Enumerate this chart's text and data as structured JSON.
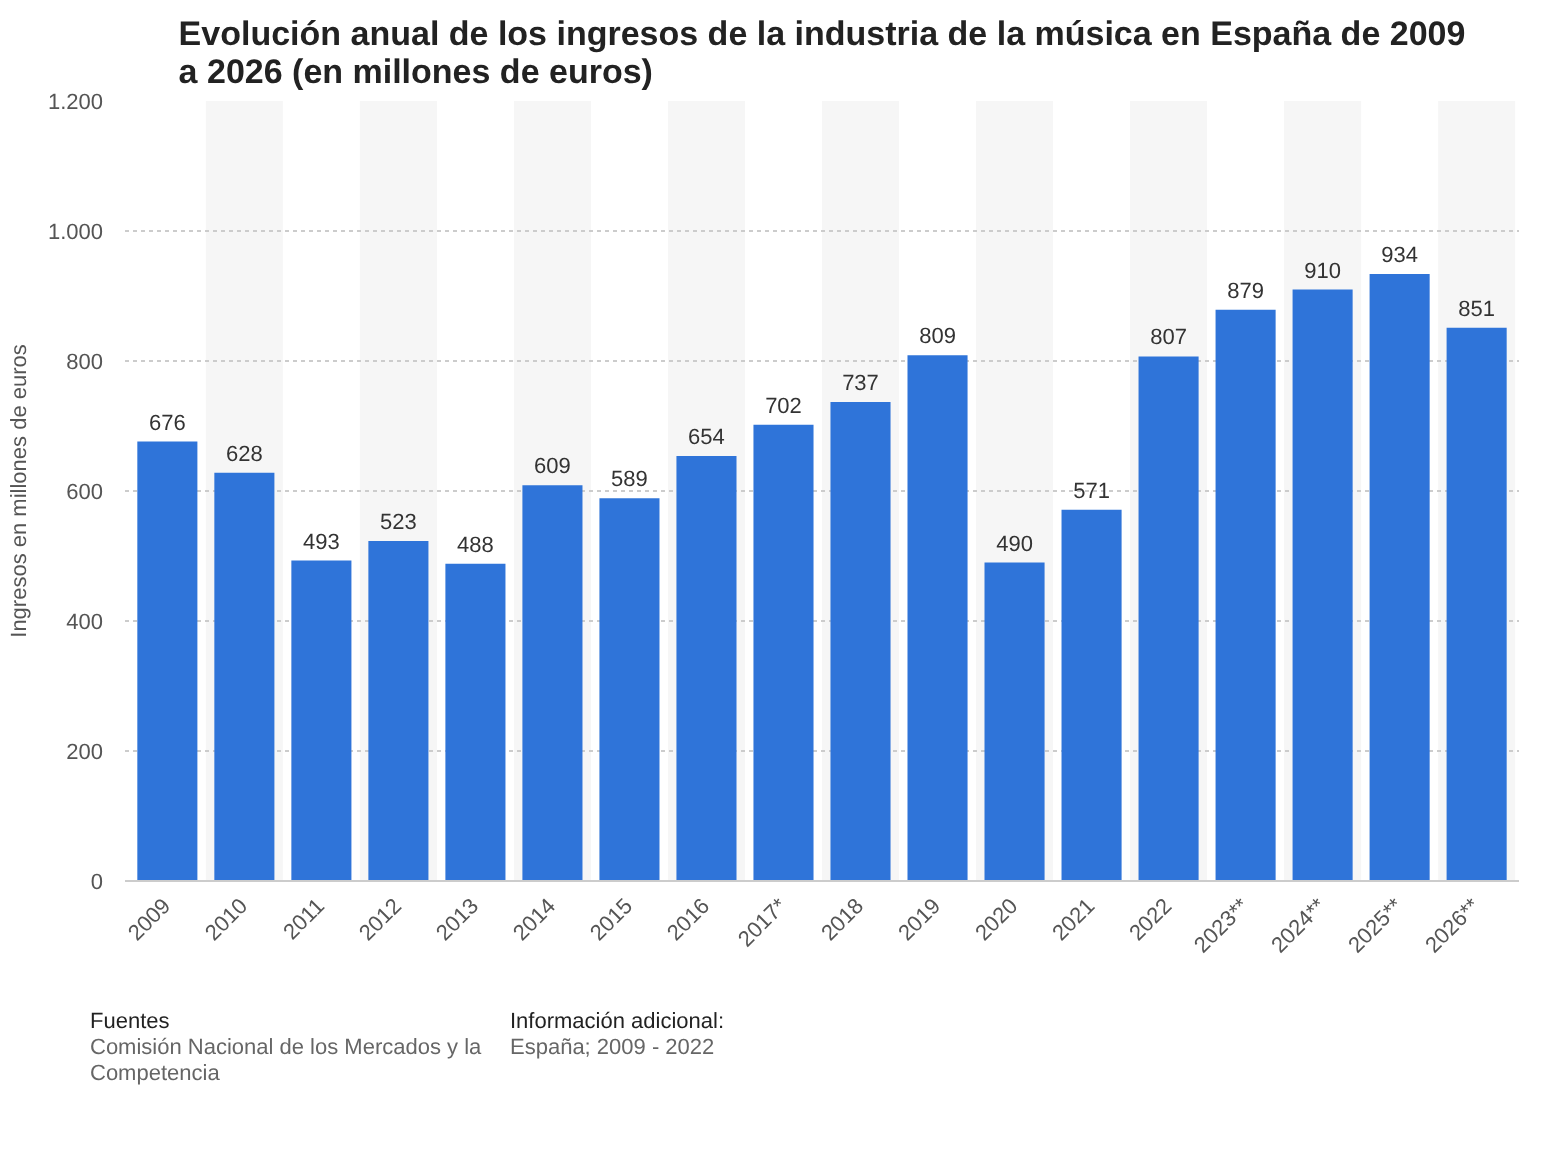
{
  "chart_data": {
    "type": "bar",
    "title": "Evolución anual de los ingresos de la industria de la música en España de 2009 a 2026 (en millones de euros)",
    "ylabel": "Ingresos en millones de euros",
    "categories": [
      "2009",
      "2010",
      "2011",
      "2012",
      "2013",
      "2014",
      "2015",
      "2016",
      "2017*",
      "2018",
      "2019",
      "2020",
      "2021",
      "2022",
      "2023**",
      "2024**",
      "2025**",
      "2026**"
    ],
    "values": [
      676,
      628,
      493,
      523,
      488,
      609,
      589,
      654,
      702,
      737,
      809,
      490,
      571,
      807,
      879,
      910,
      934,
      851
    ],
    "color": "#2f74d9",
    "ylim": [
      0,
      1200
    ],
    "yticks": [
      0,
      200,
      400,
      600,
      800,
      {
        "value": 1000,
        "label": "1.000"
      },
      {
        "value": 1200,
        "label": "1.200"
      }
    ],
    "grid": "y",
    "data_labels": true,
    "annotations": [
      "Fuentes",
      "Comisión Nacional de los Mercados y la Competencia",
      "Información adicional:",
      "España; 2009 - 2022"
    ]
  }
}
